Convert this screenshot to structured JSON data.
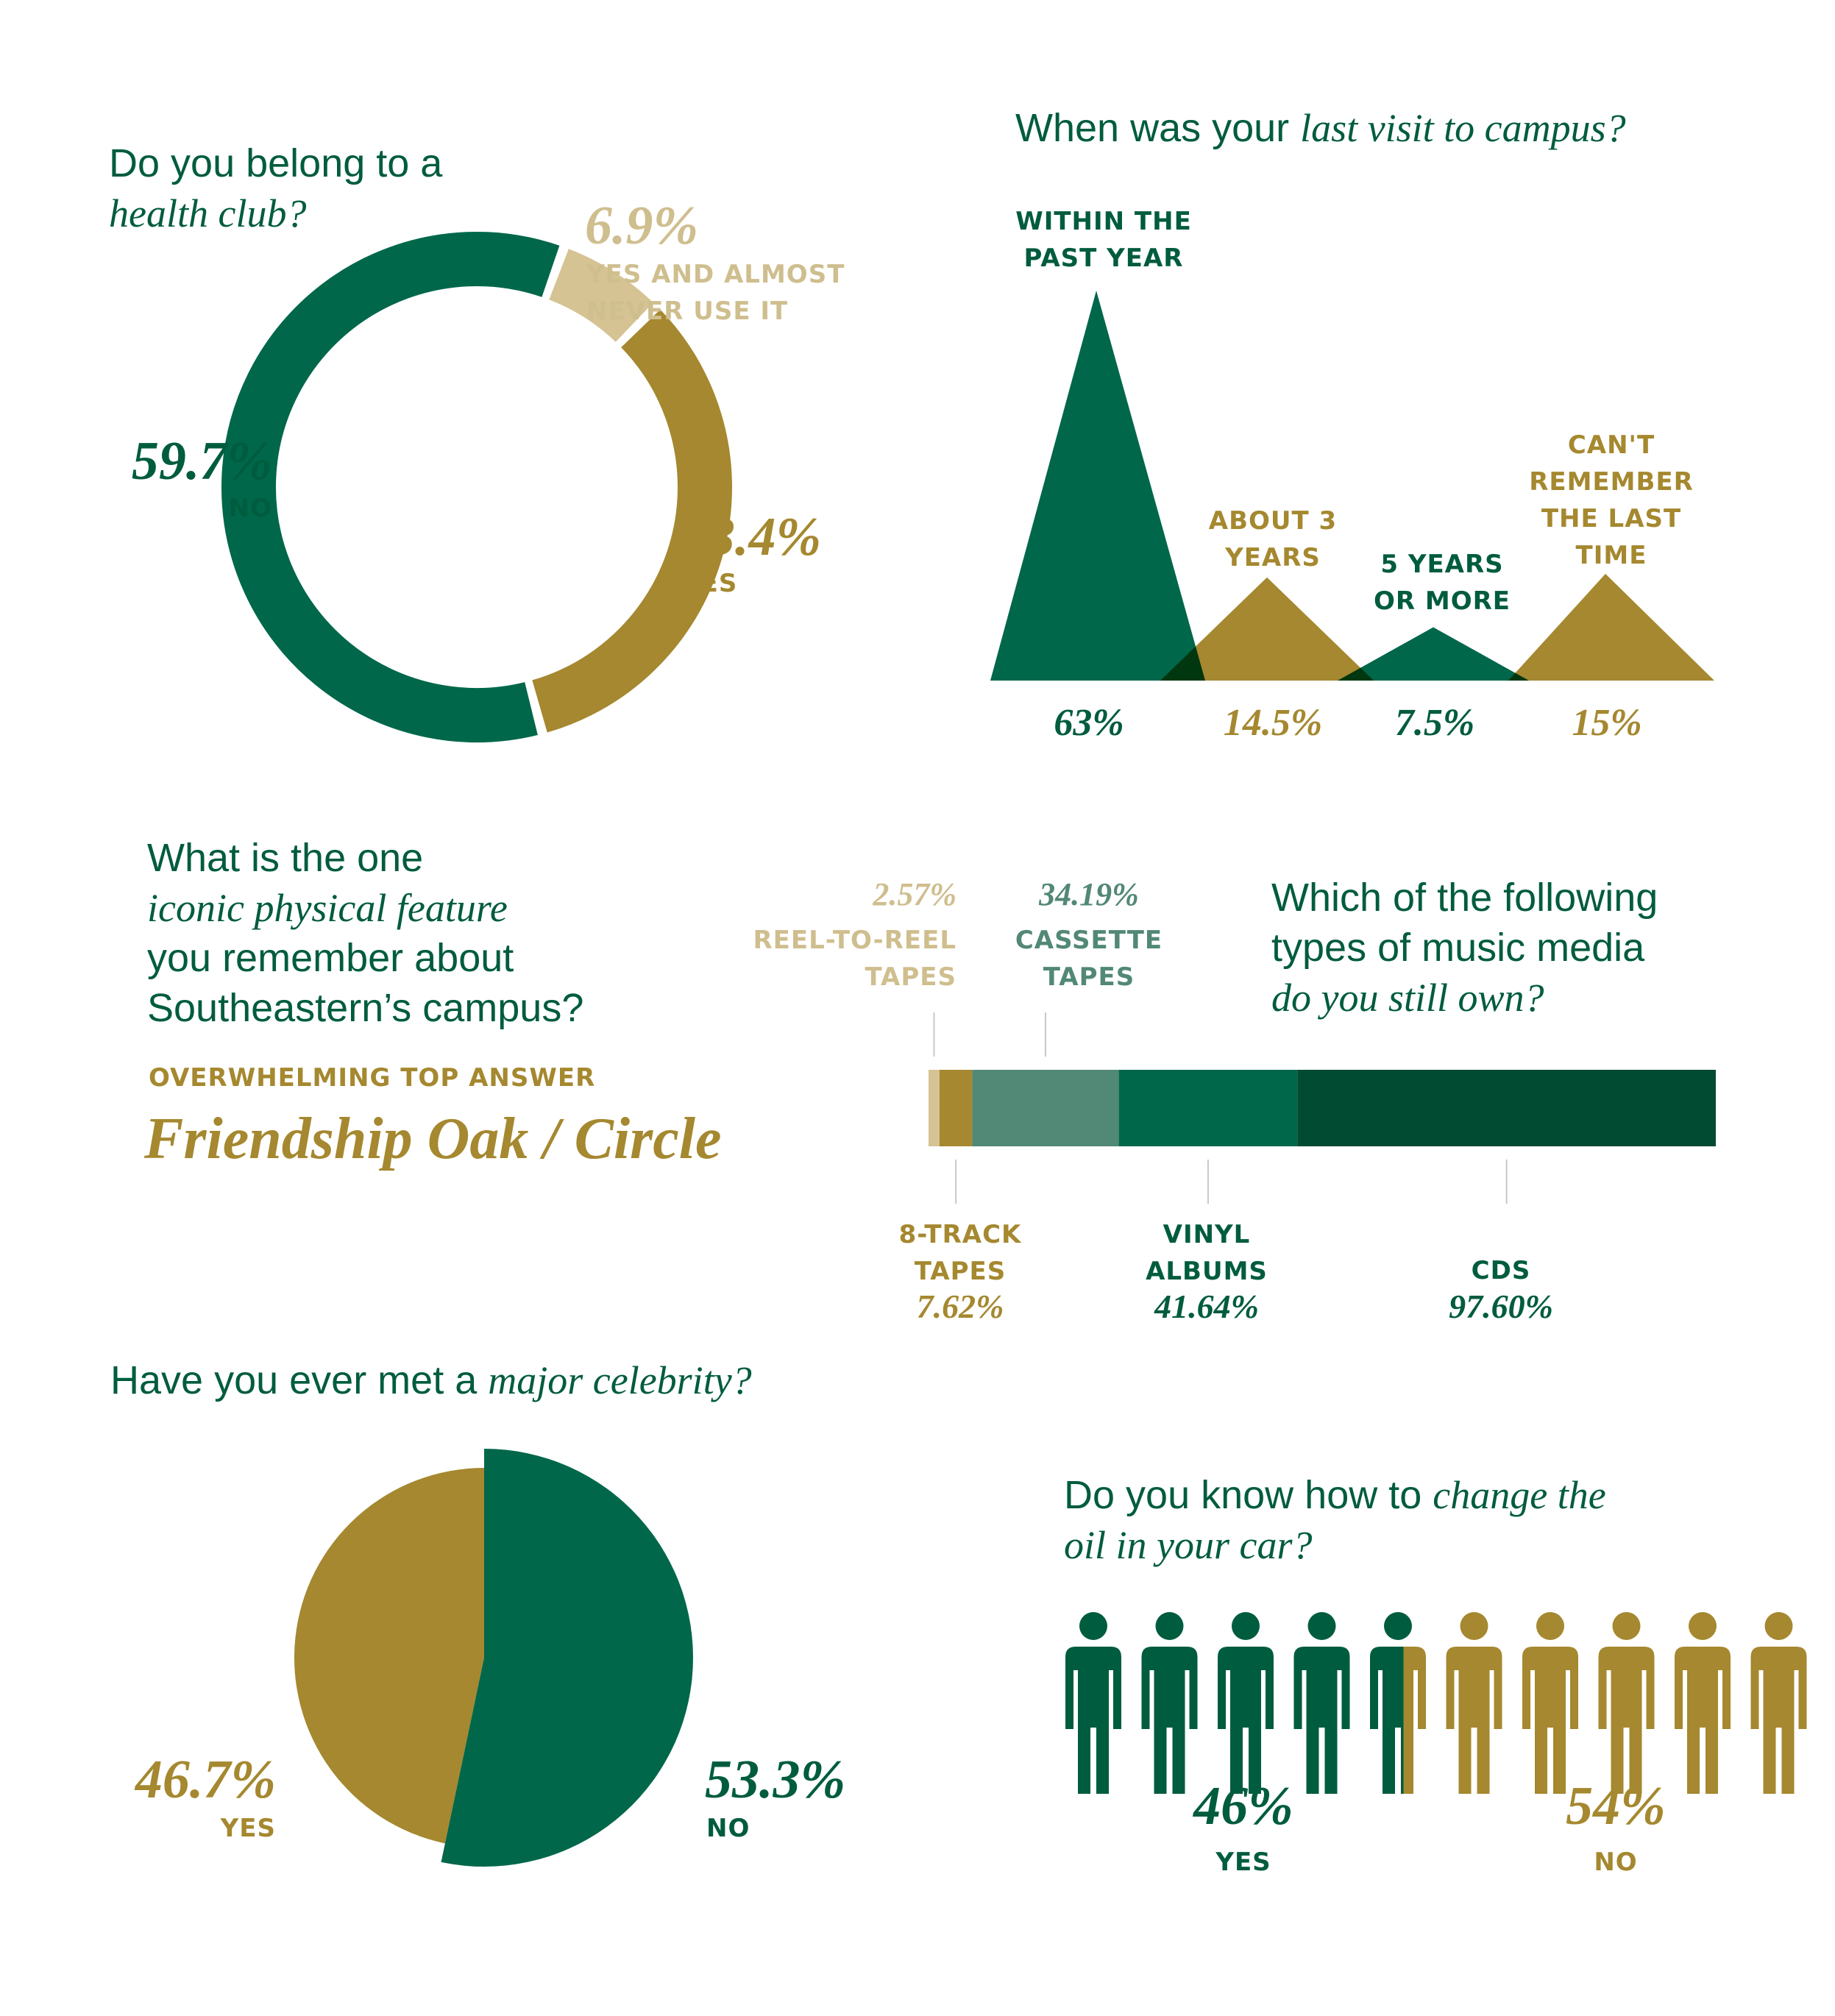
{
  "colors": {
    "dark_green": "#005c3e",
    "mid_green": "#00674a",
    "deep_green": "#004b32",
    "sage": "#528876",
    "gold": "#a5882f",
    "tan": "#d5c394",
    "light_tan": "#cfbe8e"
  },
  "health_club": {
    "question_plain": "Do you belong to a",
    "question_italic": "health club?",
    "no_value": "59.7%",
    "no_label": "NO",
    "yes_value": "33.4%",
    "yes_label": "YES",
    "rarely_value": "6.9%",
    "rarely_label_1": "YES AND ALMOST",
    "rarely_label_2": "NEVER USE IT"
  },
  "campus_visit": {
    "question_plain": "When was your",
    "question_italic": "last visit to campus?",
    "labels": [
      [
        "WITHIN THE",
        "PAST YEAR"
      ],
      [
        "ABOUT 3",
        "YEARS"
      ],
      [
        "5 YEARS",
        "OR MORE"
      ],
      [
        "CAN'T",
        "REMEMBER",
        "THE LAST",
        "TIME"
      ]
    ],
    "values_text": [
      "63%",
      "14.5%",
      "7.5%",
      "15%"
    ]
  },
  "iconic_feature": {
    "q_line1": "What is the one",
    "q_line2_italic": "iconic physical feature",
    "q_line3": "you remember about",
    "q_line4": "Southeastern’s campus?",
    "top_label": "OVERWHELMING TOP ANSWER",
    "answer": "Friendship Oak / Circle"
  },
  "music_media": {
    "q_line1": "Which of the following",
    "q_line2": "types of music media",
    "q_line3_italic": "do you still own?",
    "reel_value": "2.57%",
    "reel_label_1": "REEL-TO-REEL",
    "reel_label_2": "TAPES",
    "cassette_value": "34.19%",
    "cassette_label_1": "CASSETTE",
    "cassette_label_2": "TAPES",
    "eight_label_1": "8-TRACK",
    "eight_label_2": "TAPES",
    "eight_value": "7.62%",
    "vinyl_label_1": "VINYL",
    "vinyl_label_2": "ALBUMS",
    "vinyl_value": "41.64%",
    "cds_label": "CDS",
    "cds_value": "97.60%"
  },
  "celebrity": {
    "question_plain": "Have you ever met a",
    "question_italic": "major celebrity?",
    "yes_value": "46.7%",
    "yes_label": "YES",
    "no_value": "53.3%",
    "no_label": "NO"
  },
  "oil_change": {
    "q_plain": "Do you know how to",
    "q_italic_1": "change the",
    "q_italic_2": "oil in your car?",
    "yes_value": "46%",
    "yes_label": "YES",
    "no_value": "54%",
    "no_label": "NO",
    "people_count": 10,
    "person_icon": "person-icon"
  },
  "chart_data": [
    {
      "type": "pie",
      "title": "Do you belong to a health club?",
      "categories": [
        "NO",
        "YES",
        "YES AND ALMOST NEVER USE IT"
      ],
      "values": [
        59.7,
        33.4,
        6.9
      ],
      "colors": [
        "#00674a",
        "#a5882f",
        "#d5c394"
      ],
      "donut": true
    },
    {
      "type": "area",
      "title": "When was your last visit to campus?",
      "categories": [
        "WITHIN THE PAST YEAR",
        "ABOUT 3 YEARS",
        "5 YEARS OR MORE",
        "CAN'T REMEMBER THE LAST TIME"
      ],
      "values": [
        63,
        14.5,
        7.5,
        15
      ],
      "colors": [
        "#00674a",
        "#a5882f",
        "#00674a",
        "#a5882f"
      ]
    },
    {
      "type": "bar",
      "title": "Which of the following types of music media do you still own?",
      "categories": [
        "REEL-TO-REEL TAPES",
        "8-TRACK TAPES",
        "CASSETTE TAPES",
        "VINYL ALBUMS",
        "CDS"
      ],
      "values": [
        2.57,
        7.62,
        34.19,
        41.64,
        97.6
      ],
      "colors": [
        "#d5c394",
        "#a5882f",
        "#528876",
        "#00674a",
        "#004b32"
      ],
      "stacked": true
    },
    {
      "type": "pie",
      "title": "Have you ever met a major celebrity?",
      "categories": [
        "YES",
        "NO"
      ],
      "values": [
        46.7,
        53.3
      ],
      "colors": [
        "#a5882f",
        "#00674a"
      ]
    },
    {
      "type": "bar",
      "title": "Do you know how to change the oil in your car?",
      "categories": [
        "YES",
        "NO"
      ],
      "values": [
        46,
        54
      ],
      "colors": [
        "#005c3e",
        "#a5882f"
      ]
    }
  ]
}
